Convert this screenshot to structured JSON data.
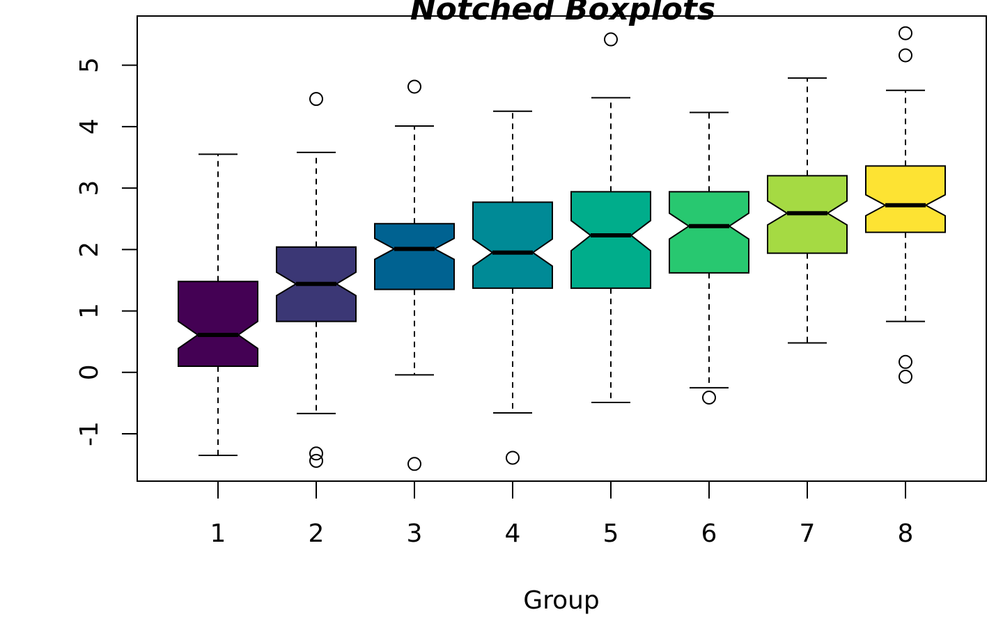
{
  "chart_data": {
    "type": "box",
    "title": "Notched Boxplots",
    "xlabel": "Group",
    "ylabel": "",
    "ylim": [
      -1.77,
      5.8
    ],
    "y_ticks": [
      -1,
      0,
      1,
      2,
      3,
      4,
      5
    ],
    "categories": [
      "1",
      "2",
      "3",
      "4",
      "5",
      "6",
      "7",
      "8"
    ],
    "boxes": [
      {
        "group": "1",
        "whisker_low": -1.35,
        "q1": 0.1,
        "median": 0.61,
        "q3": 1.48,
        "whisker_high": 3.55,
        "notch_low": 0.39,
        "notch_high": 0.83,
        "outliers": [],
        "color": "#440154"
      },
      {
        "group": "2",
        "whisker_low": -0.67,
        "q1": 0.83,
        "median": 1.44,
        "q3": 2.04,
        "whisker_high": 3.58,
        "notch_low": 1.25,
        "notch_high": 1.63,
        "outliers": [
          4.45,
          -1.32,
          -1.44
        ],
        "color": "#3B3775"
      },
      {
        "group": "3",
        "whisker_low": -0.04,
        "q1": 1.35,
        "median": 2.01,
        "q3": 2.42,
        "whisker_high": 4.01,
        "notch_low": 1.84,
        "notch_high": 2.18,
        "outliers": [
          4.65,
          -1.49
        ],
        "color": "#006291"
      },
      {
        "group": "4",
        "whisker_low": -0.66,
        "q1": 1.37,
        "median": 1.95,
        "q3": 2.77,
        "whisker_high": 4.25,
        "notch_low": 1.73,
        "notch_high": 2.17,
        "outliers": [
          -1.39
        ],
        "color": "#008A96"
      },
      {
        "group": "5",
        "whisker_low": -0.49,
        "q1": 1.37,
        "median": 2.23,
        "q3": 2.94,
        "whisker_high": 4.47,
        "notch_low": 1.98,
        "notch_high": 2.47,
        "outliers": [
          5.42
        ],
        "color": "#00AD8B"
      },
      {
        "group": "6",
        "whisker_low": -0.25,
        "q1": 1.62,
        "median": 2.38,
        "q3": 2.94,
        "whisker_high": 4.23,
        "notch_low": 2.17,
        "notch_high": 2.59,
        "outliers": [
          -0.41
        ],
        "color": "#28C870"
      },
      {
        "group": "7",
        "whisker_low": 0.48,
        "q1": 1.94,
        "median": 2.59,
        "q3": 3.2,
        "whisker_high": 4.79,
        "notch_low": 2.4,
        "notch_high": 2.79,
        "outliers": [],
        "color": "#A5DA43"
      },
      {
        "group": "8",
        "whisker_low": 0.83,
        "q1": 2.28,
        "median": 2.72,
        "q3": 3.36,
        "whisker_high": 4.59,
        "notch_low": 2.55,
        "notch_high": 2.89,
        "outliers": [
          5.52,
          5.16,
          0.17,
          -0.07
        ],
        "color": "#FDE333"
      }
    ],
    "grid": false,
    "legend": "none"
  }
}
